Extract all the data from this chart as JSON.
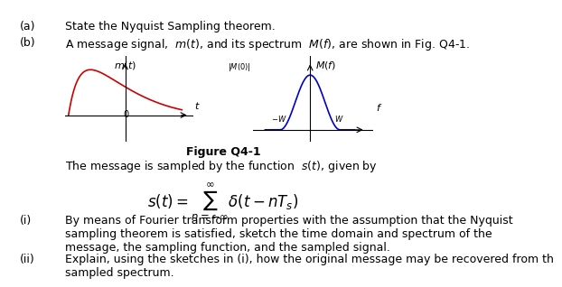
{
  "title": "Figure Q4-1",
  "line_a": "(a)",
  "line_a_text": "State the Nyquist Sampling theorem.",
  "line_b": "(b)",
  "line_b_text": "A message signal,  $m(t)$, and its spectrum  $M(f)$, are shown in Fig. Q4-1.",
  "body_text": "The message is sampled by the function  $s(t)$, given by",
  "formula": "$s(t) = \\sum_{n=-\\infty}^{\\infty} \\delta(t - nT_s)$",
  "item_i": "(i)",
  "item_i_text": "By means of Fourier transform properties with the assumption that the Nyquist\nsampling theorem is satisfied, sketch the time domain and spectrum of the\nmessage, the sampling function, and the sampled signal.",
  "item_ii": "(ii)",
  "item_ii_text": "Explain, using the sketches in (i), how the original message may be recovered from th\nsampled spectrum.",
  "bg_color": "#ffffff",
  "text_color": "#000000",
  "curve_color_left": "#cc0000",
  "curve_color_right": "#0000cc",
  "font_size_main": 9,
  "font_size_label": 8
}
